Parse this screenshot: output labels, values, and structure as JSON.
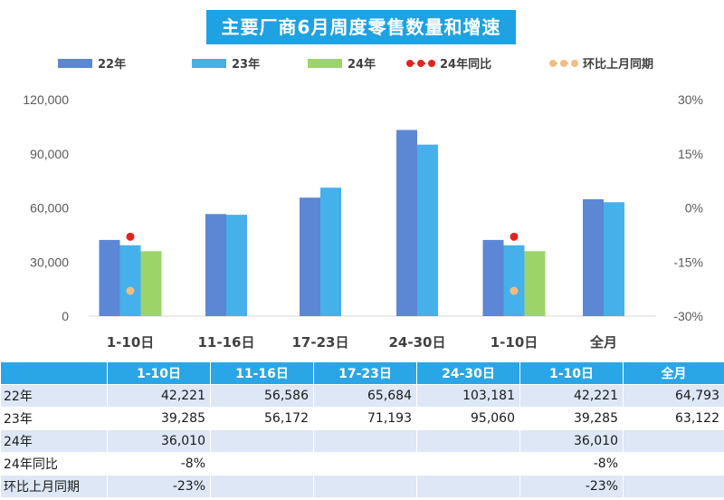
{
  "title": "主要厂商6月周度零售数量和增速",
  "legend": [
    {
      "label": "22年",
      "color": "#5b87d4",
      "kind": "bar"
    },
    {
      "label": "23年",
      "color": "#45b0ea",
      "kind": "bar"
    },
    {
      "label": "24年",
      "color": "#9cd46a",
      "kind": "bar"
    },
    {
      "label": "24年同比",
      "color": "#e0251e",
      "kind": "dot"
    },
    {
      "label": "环比上月同期",
      "color": "#f0bd84",
      "kind": "dot"
    }
  ],
  "chart_data": {
    "type": "bar",
    "categories": [
      "1-10日",
      "11-16日",
      "17-23日",
      "24-30日",
      "1-10日",
      "全月"
    ],
    "series": [
      {
        "name": "22年",
        "axis": "left",
        "color": "#5b87d4",
        "values": [
          42221,
          56586,
          65684,
          103181,
          42221,
          64793
        ]
      },
      {
        "name": "23年",
        "axis": "left",
        "color": "#45b0ea",
        "values": [
          39285,
          56172,
          71193,
          95060,
          39285,
          63122
        ]
      },
      {
        "name": "24年",
        "axis": "left",
        "color": "#9cd46a",
        "values": [
          36010,
          null,
          null,
          null,
          36010,
          null
        ]
      },
      {
        "name": "24年同比",
        "axis": "right",
        "kind": "dot",
        "color": "#e0251e",
        "values": [
          -8,
          null,
          null,
          null,
          -8,
          null
        ]
      },
      {
        "name": "环比上月同期",
        "axis": "right",
        "kind": "dot",
        "color": "#f0bd84",
        "values": [
          -23,
          null,
          null,
          null,
          -23,
          null
        ]
      }
    ],
    "y_left": {
      "ticks": [
        "0",
        "30,000",
        "60,000",
        "90,000",
        "120,000"
      ],
      "min": 0,
      "max": 120000
    },
    "y_right": {
      "ticks": [
        "-30%",
        "-15%",
        "0%",
        "15%",
        "30%"
      ],
      "min": -30,
      "max": 30,
      "unit": "%"
    },
    "grid": false,
    "legend_position": "top"
  },
  "table": {
    "header": [
      "",
      "1-10日",
      "11-16日",
      "17-23日",
      "24-30日",
      "1-10日",
      "全月"
    ],
    "rows": [
      [
        "22年",
        "42,221",
        "56,586",
        "65,684",
        "103,181",
        "42,221",
        "64,793"
      ],
      [
        "23年",
        "39,285",
        "56,172",
        "71,193",
        "95,060",
        "39,285",
        "63,122"
      ],
      [
        "24年",
        "36,010",
        "",
        "",
        "",
        "36,010",
        ""
      ],
      [
        "24年同比",
        "-8%",
        "",
        "",
        "",
        "-8%",
        ""
      ],
      [
        "环比上月同期",
        "-23%",
        "",
        "",
        "",
        "-23%",
        ""
      ]
    ]
  }
}
